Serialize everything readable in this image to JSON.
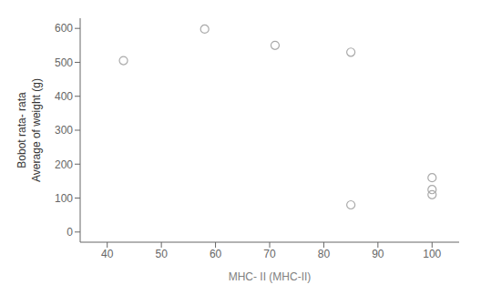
{
  "chart_data": {
    "type": "scatter",
    "x_label": "MHC- II (MHC-II)",
    "y_label": [
      "Bobot rata- rata",
      "Average of weight (g)"
    ],
    "x": [
      43,
      58,
      71,
      85,
      85,
      100,
      100,
      100
    ],
    "y": [
      505,
      598,
      550,
      530,
      80,
      160,
      125,
      110
    ],
    "xlim": [
      35,
      105
    ],
    "ylim": [
      -30,
      630
    ],
    "xticks": [
      40,
      50,
      60,
      70,
      80,
      90,
      100
    ],
    "yticks": [
      0,
      100,
      200,
      300,
      400,
      500,
      600
    ],
    "color": "#aaaaaa",
    "marker": "open_circle",
    "grid": false
  }
}
